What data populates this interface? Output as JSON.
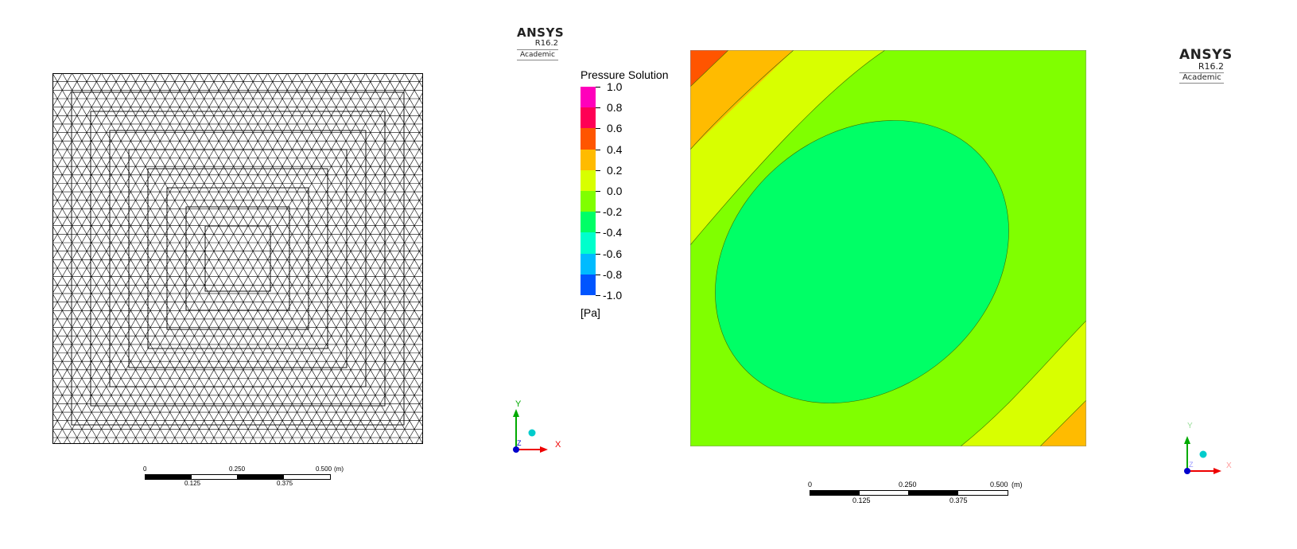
{
  "left_viewport": {
    "logo": {
      "name": "ANSYS",
      "version": "R16.2",
      "license": "Academic"
    },
    "scale_bar": {
      "top_labels": [
        "0",
        "0.250",
        "0.500"
      ],
      "bottom_labels": [
        "0.125",
        "0.375"
      ],
      "unit": "(m)"
    },
    "triad": {
      "x": "X",
      "y": "Y",
      "z": "Z"
    }
  },
  "right_viewport": {
    "logo": {
      "name": "ANSYS",
      "version": "R16.2",
      "license": "Academic"
    },
    "legend": {
      "title": "Pressure Solution",
      "ticks": [
        "1.0",
        "0.8",
        "0.6",
        "0.4",
        "0.2",
        "0.0",
        "-0.2",
        "-0.4",
        "-0.6",
        "-0.8",
        "-1.0"
      ],
      "unit": "[Pa]",
      "colors": [
        "#ff00bb",
        "#ff0055",
        "#ff5500",
        "#ffbb00",
        "#d8ff00",
        "#80ff00",
        "#00ff66",
        "#00ffcc",
        "#00bbff",
        "#0055ff"
      ]
    },
    "scale_bar": {
      "top_labels": [
        "0",
        "0.250",
        "0.500"
      ],
      "bottom_labels": [
        "0.125",
        "0.375"
      ],
      "unit": "(m)"
    },
    "triad": {
      "x": "X",
      "y": "Y",
      "z": "Z"
    }
  }
}
